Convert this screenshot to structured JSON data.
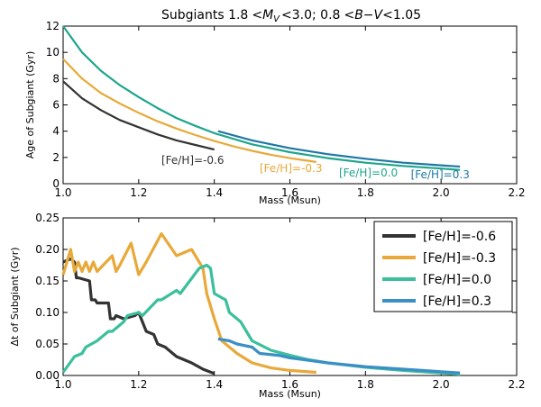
{
  "chart_data": [
    {
      "type": "line",
      "title": "Subgiants 1.8 <M",
      "title_parts": {
        "prefix": "Subgiants 1.8",
        "lt1": "<",
        "m": "M",
        "sub": "V",
        "lt2": "<",
        "mid": "3.0; 0.8",
        "lt3": "<",
        "bv": "B−V",
        "lt4": "<",
        "suffix": "1.05"
      },
      "xlabel": "Mass (Msun)",
      "ylabel": "Age of Subgiant (Gyr)",
      "xlim": [
        1.0,
        2.2
      ],
      "ylim": [
        0,
        12
      ],
      "xticks": [
        "1.0",
        "1.2",
        "1.4",
        "1.6",
        "1.8",
        "2.0",
        "2.2"
      ],
      "yticks": [
        "0",
        "2",
        "4",
        "6",
        "8",
        "10",
        "12"
      ],
      "grid": false,
      "series": [
        {
          "name": "[Fe/H]=-0.6",
          "color": "#333333",
          "label_pos": [
            1.26,
            1.5
          ],
          "x": [
            1.0,
            1.05,
            1.1,
            1.15,
            1.2,
            1.25,
            1.3,
            1.35,
            1.4
          ],
          "y": [
            7.8,
            6.5,
            5.6,
            4.85,
            4.3,
            3.75,
            3.3,
            2.95,
            2.6
          ]
        },
        {
          "name": "[Fe/H]=-0.3",
          "color": "#e8a93a",
          "label_pos": [
            1.52,
            0.9
          ],
          "x": [
            1.0,
            1.05,
            1.1,
            1.15,
            1.2,
            1.25,
            1.3,
            1.35,
            1.4,
            1.45,
            1.5,
            1.55,
            1.6,
            1.67
          ],
          "y": [
            9.5,
            8.0,
            6.9,
            6.1,
            5.4,
            4.75,
            4.2,
            3.7,
            3.25,
            2.85,
            2.5,
            2.2,
            1.95,
            1.65
          ]
        },
        {
          "name": "[Fe/H]=0.0",
          "color": "#1fa58c",
          "label_pos": [
            1.73,
            0.55
          ],
          "x": [
            1.0,
            1.05,
            1.1,
            1.15,
            1.2,
            1.25,
            1.3,
            1.35,
            1.4,
            1.5,
            1.6,
            1.7,
            1.8,
            1.9,
            2.0,
            2.05
          ],
          "y": [
            12.0,
            10.0,
            8.6,
            7.5,
            6.6,
            5.75,
            5.0,
            4.4,
            3.85,
            3.0,
            2.4,
            1.95,
            1.6,
            1.35,
            1.15,
            1.05
          ]
        },
        {
          "name": "[Fe/H]=0.3",
          "color": "#1f77a4",
          "label_pos": [
            1.92,
            0.4
          ],
          "x": [
            1.41,
            1.5,
            1.6,
            1.7,
            1.8,
            1.9,
            2.0,
            2.05
          ],
          "y": [
            4.0,
            3.3,
            2.7,
            2.25,
            1.9,
            1.6,
            1.4,
            1.3
          ]
        }
      ]
    },
    {
      "type": "line",
      "xlabel": "Mass (Msun)",
      "ylabel": "Δt of Subgiant (Gyr)",
      "xlim": [
        1.0,
        2.2
      ],
      "ylim": [
        0,
        0.25
      ],
      "xticks": [
        "1.0",
        "1.2",
        "1.4",
        "1.6",
        "1.8",
        "2.0",
        "2.2"
      ],
      "yticks": [
        "0.00",
        "0.05",
        "0.10",
        "0.15",
        "0.20",
        "0.25"
      ],
      "grid": false,
      "legend": "top-right",
      "series": [
        {
          "name": "[Fe/H]=-0.6",
          "color": "#333333",
          "x": [
            1.0,
            1.02,
            1.03,
            1.035,
            1.04,
            1.07,
            1.075,
            1.085,
            1.09,
            1.12,
            1.125,
            1.135,
            1.14,
            1.16,
            1.19,
            1.2,
            1.21,
            1.22,
            1.24,
            1.25,
            1.27,
            1.3,
            1.34,
            1.37,
            1.4
          ],
          "y": [
            0.18,
            0.185,
            0.18,
            0.155,
            0.155,
            0.15,
            0.12,
            0.12,
            0.115,
            0.115,
            0.09,
            0.09,
            0.095,
            0.09,
            0.095,
            0.1,
            0.085,
            0.07,
            0.065,
            0.05,
            0.045,
            0.03,
            0.02,
            0.01,
            0.003
          ]
        },
        {
          "name": "[Fe/H]=-0.3",
          "color": "#e8a93a",
          "x": [
            1.0,
            1.02,
            1.03,
            1.04,
            1.05,
            1.06,
            1.07,
            1.08,
            1.09,
            1.13,
            1.14,
            1.15,
            1.18,
            1.2,
            1.22,
            1.26,
            1.3,
            1.34,
            1.37,
            1.38,
            1.4,
            1.42,
            1.46,
            1.5,
            1.55,
            1.6,
            1.67
          ],
          "y": [
            0.16,
            0.2,
            0.165,
            0.18,
            0.165,
            0.18,
            0.165,
            0.18,
            0.165,
            0.19,
            0.165,
            0.175,
            0.21,
            0.16,
            0.18,
            0.225,
            0.19,
            0.2,
            0.17,
            0.13,
            0.09,
            0.055,
            0.035,
            0.02,
            0.012,
            0.008,
            0.005
          ]
        },
        {
          "name": "[Fe/H]=0.0",
          "color": "#3bbf9c",
          "x": [
            1.0,
            1.03,
            1.05,
            1.06,
            1.09,
            1.1,
            1.12,
            1.13,
            1.16,
            1.17,
            1.2,
            1.21,
            1.25,
            1.26,
            1.3,
            1.31,
            1.36,
            1.38,
            1.39,
            1.4,
            1.43,
            1.44,
            1.47,
            1.5,
            1.55,
            1.6,
            1.65,
            1.7,
            1.8,
            1.9,
            2.05
          ],
          "y": [
            0.005,
            0.03,
            0.035,
            0.045,
            0.055,
            0.06,
            0.07,
            0.07,
            0.085,
            0.095,
            0.1,
            0.095,
            0.12,
            0.12,
            0.135,
            0.13,
            0.17,
            0.175,
            0.17,
            0.13,
            0.12,
            0.1,
            0.085,
            0.055,
            0.04,
            0.032,
            0.025,
            0.02,
            0.013,
            0.008,
            0.002
          ]
        },
        {
          "name": "[Fe/H]=0.3",
          "color": "#3b8fc4",
          "x": [
            1.41,
            1.44,
            1.46,
            1.5,
            1.52,
            1.57,
            1.6,
            1.65,
            1.7,
            1.75,
            1.8,
            1.85,
            1.9,
            1.95,
            2.0,
            2.05
          ],
          "y": [
            0.058,
            0.055,
            0.05,
            0.045,
            0.035,
            0.032,
            0.028,
            0.024,
            0.02,
            0.017,
            0.014,
            0.012,
            0.01,
            0.008,
            0.006,
            0.004
          ]
        }
      ]
    }
  ]
}
